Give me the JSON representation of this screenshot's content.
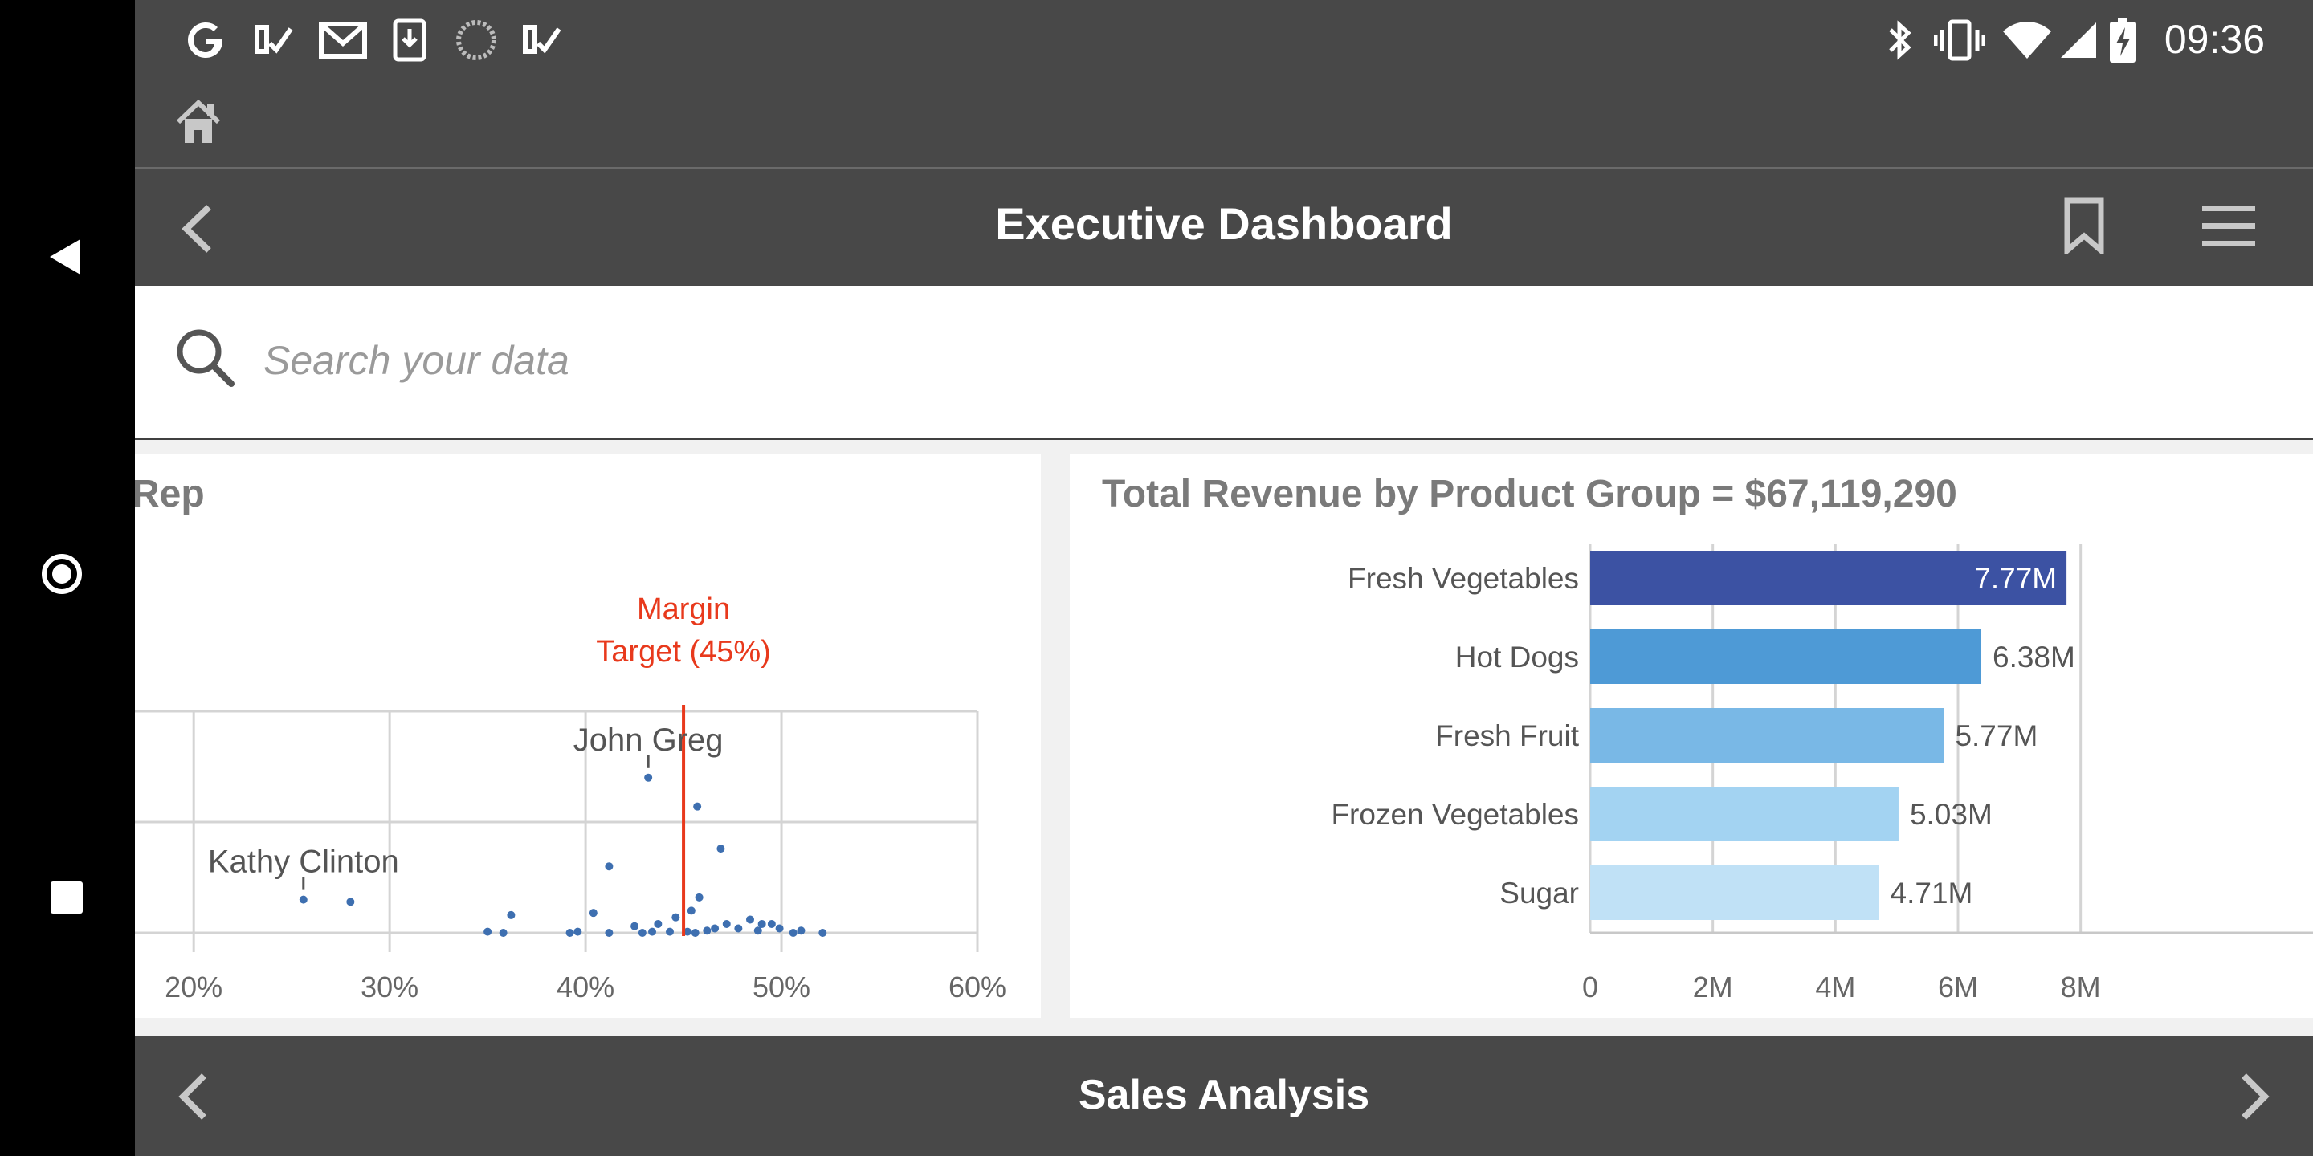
{
  "status_bar": {
    "time": "09:36",
    "notification_icons": [
      "google-icon",
      "checkmark-icon",
      "gmail-icon",
      "download-icon",
      "loading-icon",
      "checkmark-icon"
    ],
    "system_icons": [
      "bluetooth-icon",
      "vibrate-icon",
      "wifi-icon",
      "signal-icon",
      "battery-charging-icon"
    ]
  },
  "header": {
    "title": "Executive Dashboard"
  },
  "search": {
    "placeholder": "Search your data"
  },
  "left_panel": {
    "title": "Rep",
    "reference_line_label_1": "Margin",
    "reference_line_label_2": "Target (45%)",
    "point_labels": [
      "John Greg",
      "Kathy Clinton"
    ],
    "x_ticks": [
      "20%",
      "30%",
      "40%",
      "50%",
      "60%"
    ]
  },
  "right_panel": {
    "title": "Total Revenue by Product Group = $67,119,290"
  },
  "chart_data": [
    {
      "type": "scatter",
      "title": "Rep",
      "xlim": [
        17,
        60
      ],
      "x_ticks": [
        20,
        30,
        40,
        50,
        60
      ],
      "x_tick_labels": [
        "20%",
        "30%",
        "40%",
        "50%",
        "60%"
      ],
      "reference_line": {
        "x": 45,
        "label": "Margin Target (45%)",
        "color": "#e8391c"
      },
      "annotations": [
        {
          "label": "John Greg",
          "x": 43.2,
          "y": 0.7
        },
        {
          "label": "Kathy Clinton",
          "x": 25.6,
          "y": 0.15
        }
      ],
      "points": [
        [
          43.2,
          0.7
        ],
        [
          45.7,
          0.57
        ],
        [
          46.9,
          0.38
        ],
        [
          41.2,
          0.3
        ],
        [
          25.6,
          0.15
        ],
        [
          28.0,
          0.14
        ],
        [
          36.2,
          0.08
        ],
        [
          40.4,
          0.09
        ],
        [
          45.4,
          0.1
        ],
        [
          45.8,
          0.16
        ],
        [
          44.6,
          0.07
        ],
        [
          43.7,
          0.04
        ],
        [
          42.5,
          0.03
        ],
        [
          47.2,
          0.04
        ],
        [
          48.4,
          0.06
        ],
        [
          49.0,
          0.04
        ],
        [
          49.5,
          0.04
        ],
        [
          49.9,
          0.02
        ],
        [
          47.8,
          0.02
        ],
        [
          48.8,
          0.01
        ],
        [
          46.2,
          0.01
        ],
        [
          45.2,
          0.005
        ],
        [
          44.3,
          0.005
        ],
        [
          43.4,
          0.005
        ],
        [
          42.9,
          0.0
        ],
        [
          39.2,
          0.0
        ],
        [
          39.6,
          0.005
        ],
        [
          41.2,
          0.0
        ],
        [
          35.0,
          0.005
        ],
        [
          35.8,
          0.0
        ],
        [
          50.6,
          0.0
        ],
        [
          51.0,
          0.01
        ],
        [
          52.1,
          0.0
        ],
        [
          45.6,
          0.0
        ],
        [
          46.6,
          0.02
        ]
      ],
      "point_color": "#3e6fb0",
      "grid": true
    },
    {
      "type": "bar",
      "orientation": "horizontal",
      "title": "Total Revenue by Product Group = $67,119,290",
      "categories": [
        "Fresh Vegetables",
        "Hot Dogs",
        "Fresh Fruit",
        "Frozen Vegetables",
        "Sugar"
      ],
      "values": [
        7.77,
        6.38,
        5.77,
        5.03,
        4.71
      ],
      "value_labels": [
        "7.77M",
        "6.38M",
        "5.77M",
        "5.03M",
        "4.71M"
      ],
      "colors": [
        "#3c52a3",
        "#4e9ad6",
        "#79b8e6",
        "#a3d3f2",
        "#c0e1f6"
      ],
      "xlim": [
        0,
        8
      ],
      "x_ticks": [
        0,
        2,
        4,
        6,
        8
      ],
      "x_tick_labels": [
        "0",
        "2M",
        "4M",
        "6M",
        "8M"
      ],
      "grid": true
    }
  ],
  "footer": {
    "title": "Sales Analysis"
  },
  "colors": {
    "app_bar": "#484848",
    "nav_bar": "#000000",
    "content_bg": "#f1f1f1",
    "reference_line": "#e8391c"
  }
}
